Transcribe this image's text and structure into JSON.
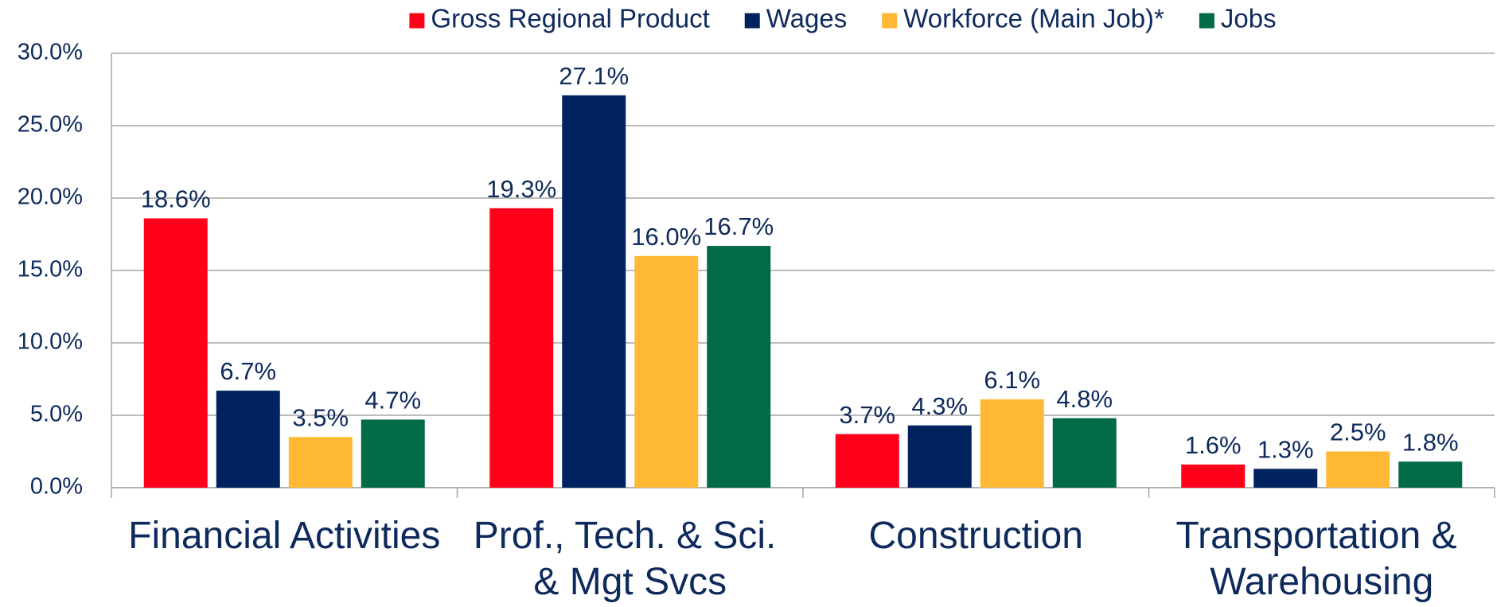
{
  "chart_data": {
    "type": "bar",
    "categories": [
      "Financial Activities",
      "Prof., Tech. & Sci. & Mgt Svcs",
      "Construction",
      "Transportation & Warehousing"
    ],
    "series": [
      {
        "name": "Gross Regional Product",
        "color": "#fe0019",
        "values": [
          18.6,
          19.3,
          3.7,
          1.6
        ],
        "value_labels": [
          "18.6%",
          "19.3%",
          "3.7%",
          "1.6%"
        ]
      },
      {
        "name": "Wages",
        "color": "#002360",
        "values": [
          6.7,
          27.1,
          4.3,
          1.3
        ],
        "value_labels": [
          "6.7%",
          "27.1%",
          "4.3%",
          "1.3%"
        ]
      },
      {
        "name": "Workforce (Main Job)*",
        "color": "#ffb935",
        "values": [
          3.5,
          16.0,
          6.1,
          2.5
        ],
        "value_labels": [
          "3.5%",
          "16.0%",
          "6.1%",
          "2.5%"
        ]
      },
      {
        "name": "Jobs",
        "color": "#006b44",
        "values": [
          4.7,
          16.7,
          4.8,
          1.8
        ],
        "value_labels": [
          "4.7%",
          "16.7%",
          "4.8%",
          "1.8%"
        ]
      }
    ],
    "ylim": [
      0,
      30
    ],
    "yticks": [
      {
        "value": 0,
        "label": "0.0%"
      },
      {
        "value": 5,
        "label": "5.0%"
      },
      {
        "value": 10,
        "label": "10.0%"
      },
      {
        "value": 15,
        "label": "15.0%"
      },
      {
        "value": 20,
        "label": "20.0%"
      },
      {
        "value": 25,
        "label": "25.0%"
      },
      {
        "value": 30,
        "label": "30.0%"
      }
    ],
    "grid": true,
    "legend": "top"
  }
}
